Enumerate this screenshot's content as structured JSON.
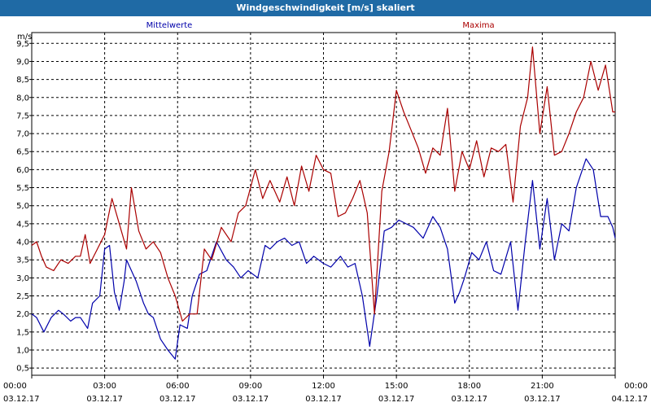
{
  "window": {
    "title": "Windgeschwindigkeit [m/s] skaliert"
  },
  "chart_data": {
    "type": "line",
    "title": "Windgeschwindigkeit [m/s] skaliert",
    "ylabel": "m/s",
    "ylim": [
      0.3,
      9.8
    ],
    "xlim": [
      0,
      24
    ],
    "grid": true,
    "legend_placement": "top",
    "y_ticks": [
      "0,5",
      "1,0",
      "1,5",
      "2,0",
      "2,5",
      "3,0",
      "3,5",
      "4,0",
      "4,5",
      "5,0",
      "5,5",
      "6,0",
      "6,5",
      "7,0",
      "7,5",
      "8,0",
      "8,5",
      "9,0",
      "9,5"
    ],
    "y_tick_values": [
      0.5,
      1.0,
      1.5,
      2.0,
      2.5,
      3.0,
      3.5,
      4.0,
      4.5,
      5.0,
      5.5,
      6.0,
      6.5,
      7.0,
      7.5,
      8.0,
      8.5,
      9.0,
      9.5
    ],
    "x_ticks": [
      {
        "hour": 0,
        "time": "00:00",
        "date": "03.12.17"
      },
      {
        "hour": 3,
        "time": "03:00",
        "date": "03.12.17"
      },
      {
        "hour": 6,
        "time": "06:00",
        "date": "03.12.17"
      },
      {
        "hour": 9,
        "time": "09:00",
        "date": "03.12.17"
      },
      {
        "hour": 12,
        "time": "12:00",
        "date": "03.12.17"
      },
      {
        "hour": 15,
        "time": "15:00",
        "date": "03.12.17"
      },
      {
        "hour": 18,
        "time": "18:00",
        "date": "03.12.17"
      },
      {
        "hour": 21,
        "time": "21:00",
        "date": "03.12.17"
      },
      {
        "hour": 24,
        "time": "00:00",
        "date": "04.12.17"
      }
    ],
    "series": [
      {
        "name": "Mittelwerte",
        "color": "#0000aa",
        "x": [
          0.0,
          0.2,
          0.5,
          0.8,
          1.1,
          1.3,
          1.6,
          1.8,
          2.0,
          2.3,
          2.5,
          2.8,
          3.0,
          3.2,
          3.4,
          3.6,
          3.8,
          3.9,
          4.1,
          4.3,
          4.6,
          4.8,
          5.0,
          5.3,
          5.6,
          5.9,
          6.1,
          6.4,
          6.6,
          6.9,
          7.2,
          7.6,
          8.0,
          8.3,
          8.6,
          8.9,
          9.3,
          9.6,
          9.8,
          10.1,
          10.4,
          10.7,
          11.0,
          11.3,
          11.6,
          12.0,
          12.3,
          12.7,
          13.0,
          13.3,
          13.6,
          13.9,
          14.2,
          14.5,
          14.8,
          15.1,
          15.4,
          15.7,
          16.1,
          16.5,
          16.8,
          17.1,
          17.4,
          17.6,
          17.8,
          18.1,
          18.4,
          18.7,
          19.0,
          19.3,
          19.7,
          20.0,
          20.3,
          20.6,
          20.9,
          21.2,
          21.5,
          21.8,
          22.1,
          22.4,
          22.8,
          23.1,
          23.4,
          23.7,
          23.9,
          24.0
        ],
        "y": [
          2.0,
          1.9,
          1.5,
          1.9,
          2.1,
          2.0,
          1.8,
          1.9,
          1.9,
          1.6,
          2.3,
          2.5,
          3.8,
          3.9,
          2.6,
          2.1,
          2.9,
          3.5,
          3.2,
          2.9,
          2.3,
          2.0,
          1.9,
          1.3,
          1.0,
          0.75,
          1.7,
          1.6,
          2.5,
          3.1,
          3.2,
          4.0,
          3.5,
          3.3,
          3.0,
          3.2,
          3.0,
          3.9,
          3.8,
          4.0,
          4.1,
          3.9,
          4.0,
          3.4,
          3.6,
          3.4,
          3.3,
          3.6,
          3.3,
          3.4,
          2.5,
          1.1,
          2.5,
          4.3,
          4.4,
          4.6,
          4.5,
          4.4,
          4.1,
          4.7,
          4.4,
          3.8,
          2.3,
          2.6,
          3.0,
          3.7,
          3.5,
          4.0,
          3.2,
          3.1,
          4.0,
          2.1,
          4.0,
          5.7,
          3.8,
          5.2,
          3.5,
          4.5,
          4.3,
          5.5,
          6.3,
          6.0,
          4.7,
          4.7,
          4.4,
          4.1
        ]
      },
      {
        "name": "Maxima",
        "color": "#aa0000",
        "x": [
          0.0,
          0.2,
          0.4,
          0.6,
          0.9,
          1.2,
          1.5,
          1.8,
          2.0,
          2.2,
          2.4,
          2.7,
          3.0,
          3.3,
          3.6,
          3.9,
          4.1,
          4.4,
          4.7,
          5.0,
          5.3,
          5.6,
          5.9,
          6.2,
          6.5,
          6.8,
          7.1,
          7.4,
          7.8,
          8.2,
          8.5,
          8.8,
          9.2,
          9.5,
          9.8,
          10.2,
          10.5,
          10.8,
          11.1,
          11.4,
          11.7,
          12.0,
          12.3,
          12.6,
          12.9,
          13.2,
          13.5,
          13.8,
          14.1,
          14.4,
          14.7,
          15.0,
          15.3,
          15.6,
          15.9,
          16.2,
          16.5,
          16.8,
          17.1,
          17.4,
          17.7,
          18.0,
          18.3,
          18.6,
          18.9,
          19.2,
          19.5,
          19.8,
          20.1,
          20.4,
          20.6,
          20.9,
          21.2,
          21.5,
          21.8,
          22.1,
          22.4,
          22.7,
          23.0,
          23.3,
          23.6,
          23.9,
          24.0
        ],
        "y": [
          3.9,
          4.0,
          3.6,
          3.3,
          3.2,
          3.5,
          3.4,
          3.6,
          3.6,
          4.2,
          3.4,
          3.8,
          4.2,
          5.2,
          4.5,
          3.8,
          5.5,
          4.3,
          3.8,
          4.0,
          3.7,
          3.0,
          2.5,
          1.8,
          2.0,
          2.0,
          3.8,
          3.5,
          4.4,
          4.0,
          4.8,
          5.0,
          6.0,
          5.2,
          5.7,
          5.1,
          5.8,
          5.0,
          6.1,
          5.4,
          6.4,
          6.0,
          5.9,
          4.7,
          4.8,
          5.2,
          5.7,
          4.8,
          2.0,
          5.4,
          6.5,
          8.2,
          7.6,
          7.1,
          6.6,
          5.9,
          6.6,
          6.4,
          7.7,
          5.4,
          6.5,
          6.0,
          6.8,
          5.8,
          6.6,
          6.5,
          6.7,
          5.1,
          7.2,
          8.0,
          9.4,
          7.0,
          8.3,
          6.4,
          6.5,
          7.0,
          7.6,
          8.0,
          9.0,
          8.2,
          8.9,
          7.6,
          7.6
        ]
      }
    ]
  }
}
